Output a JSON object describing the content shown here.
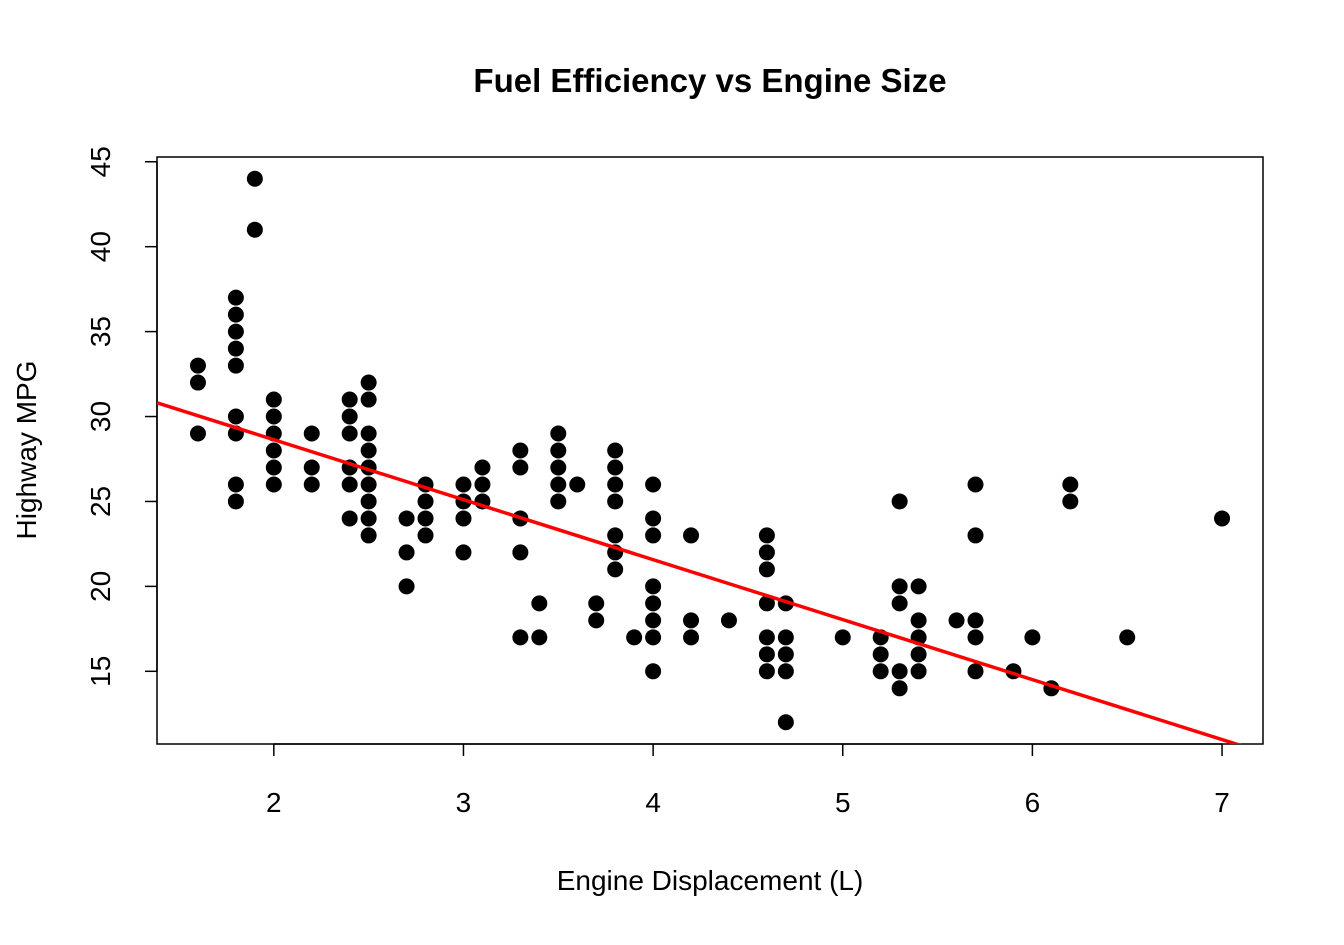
{
  "chart_data": {
    "type": "scatter",
    "title": "Fuel Efficiency vs Engine Size",
    "xlabel": "Engine Displacement (L)",
    "ylabel": "Highway MPG",
    "xlim": [
      1.384,
      7.216
    ],
    "ylim": [
      10.72,
      45.28
    ],
    "xticks": [
      2,
      3,
      4,
      5,
      6,
      7
    ],
    "yticks": [
      15,
      20,
      25,
      30,
      35,
      40,
      45
    ],
    "grid": false,
    "point_color": "#000000",
    "line_color": "#ff0000",
    "regression_line": {
      "intercept": 35.698,
      "slope": -3.531
    },
    "points": [
      [
        1.6,
        [
          33,
          32,
          29
        ]
      ],
      [
        1.8,
        [
          37,
          36,
          35,
          34,
          33,
          30,
          29,
          26,
          25
        ]
      ],
      [
        1.9,
        [
          44,
          41
        ]
      ],
      [
        2.0,
        [
          31,
          30,
          29,
          28,
          27,
          26
        ]
      ],
      [
        2.2,
        [
          29,
          27,
          26
        ]
      ],
      [
        2.4,
        [
          31,
          30,
          29,
          27,
          26,
          24
        ]
      ],
      [
        2.5,
        [
          32,
          31,
          29,
          28,
          27,
          26,
          25,
          24,
          23
        ]
      ],
      [
        2.7,
        [
          24,
          22,
          20
        ]
      ],
      [
        2.8,
        [
          26,
          25,
          24,
          23
        ]
      ],
      [
        3.0,
        [
          26,
          25,
          24,
          22
        ]
      ],
      [
        3.1,
        [
          27,
          26,
          25
        ]
      ],
      [
        3.3,
        [
          28,
          27,
          24,
          22,
          17
        ]
      ],
      [
        3.4,
        [
          19,
          17
        ]
      ],
      [
        3.5,
        [
          29,
          28,
          27,
          26,
          25
        ]
      ],
      [
        3.6,
        [
          26
        ]
      ],
      [
        3.7,
        [
          19,
          18
        ]
      ],
      [
        3.8,
        [
          28,
          27,
          26,
          25,
          23,
          22,
          21
        ]
      ],
      [
        3.9,
        [
          17
        ]
      ],
      [
        4.0,
        [
          26,
          24,
          23,
          20,
          19,
          18,
          17,
          15
        ]
      ],
      [
        4.2,
        [
          23,
          18,
          17
        ]
      ],
      [
        4.4,
        [
          18
        ]
      ],
      [
        4.6,
        [
          23,
          22,
          21,
          19,
          17,
          16,
          15
        ]
      ],
      [
        4.7,
        [
          19,
          17,
          16,
          15,
          12
        ]
      ],
      [
        5.0,
        [
          17
        ]
      ],
      [
        5.2,
        [
          17,
          16,
          15
        ]
      ],
      [
        5.3,
        [
          25,
          20,
          19,
          15,
          14
        ]
      ],
      [
        5.4,
        [
          20,
          18,
          17,
          16,
          15
        ]
      ],
      [
        5.6,
        [
          18
        ]
      ],
      [
        5.7,
        [
          26,
          23,
          18,
          17,
          15
        ]
      ],
      [
        5.9,
        [
          15
        ]
      ],
      [
        6.0,
        [
          17
        ]
      ],
      [
        6.1,
        [
          14
        ]
      ],
      [
        6.2,
        [
          26,
          25
        ]
      ],
      [
        6.5,
        [
          17
        ]
      ],
      [
        7.0,
        [
          24
        ]
      ]
    ]
  }
}
